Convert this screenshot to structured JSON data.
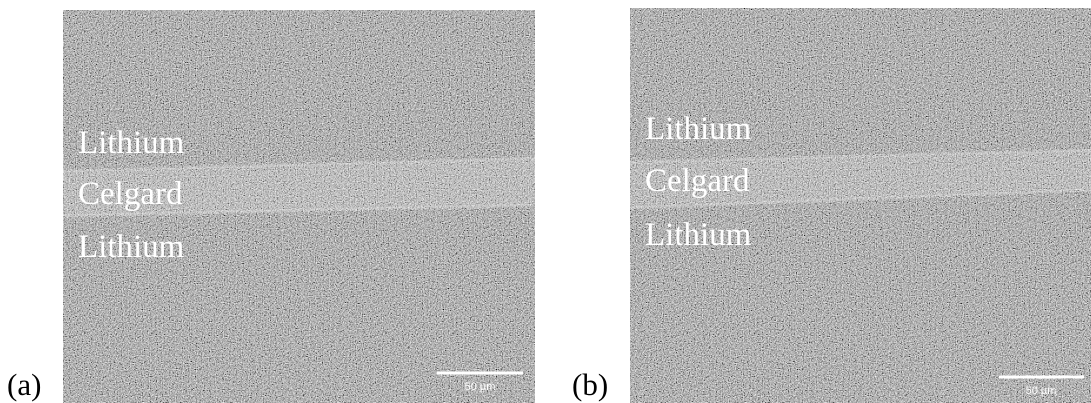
{
  "panels": [
    {
      "label": "(a)",
      "annotations": [
        "Lithium",
        "Celgard",
        "Lithium"
      ],
      "scale_bar": "50 µm"
    },
    {
      "label": "(b)",
      "annotations": [
        "Lithium",
        "Celgard",
        "Lithium"
      ],
      "scale_bar": "50 µm"
    }
  ]
}
